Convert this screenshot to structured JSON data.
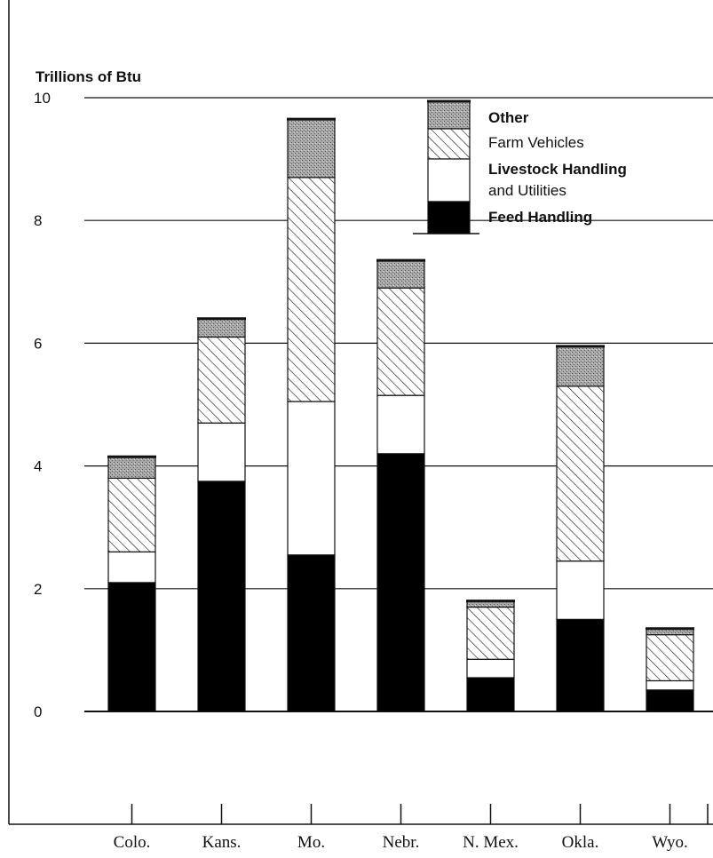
{
  "chart_data": {
    "type": "bar",
    "stacked": true,
    "ylabel": "Trillions of Btu",
    "ylim": [
      0,
      10
    ],
    "yticks": [
      0,
      2,
      4,
      6,
      8,
      10
    ],
    "grid": true,
    "legend_position": "top-right",
    "categories": [
      "Colo.",
      "Kans.",
      "Mo.",
      "Nebr.",
      "N. Mex.",
      "Okla.",
      "Wyo."
    ],
    "series": [
      {
        "name": "Feed Handling",
        "pattern": "solid-black",
        "color": "#000000",
        "values": [
          2.1,
          3.75,
          2.55,
          4.2,
          0.55,
          1.5,
          0.35
        ]
      },
      {
        "name": "Livestock Handling and Utilities",
        "pattern": "white",
        "color": "#ffffff",
        "values": [
          0.5,
          0.95,
          2.5,
          0.95,
          0.3,
          0.95,
          0.15
        ]
      },
      {
        "name": "Farm Vehicles",
        "pattern": "diagonal-hatch",
        "color": "#000000",
        "values": [
          1.2,
          1.4,
          3.65,
          1.75,
          0.85,
          2.85,
          0.75
        ]
      },
      {
        "name": "Other",
        "pattern": "stipple-gray",
        "color": "#9a9a9a",
        "values": [
          0.35,
          0.3,
          0.95,
          0.45,
          0.1,
          0.65,
          0.1
        ]
      }
    ],
    "legend": [
      {
        "label": "Other",
        "label_line2": "",
        "bold": true,
        "series": "Other"
      },
      {
        "label": "Farm Vehicles",
        "label_line2": "",
        "bold": false,
        "series": "Farm Vehicles"
      },
      {
        "label": "Livestock Handling",
        "label_line2": "and Utilities",
        "bold": true,
        "series": "Livestock Handling and Utilities"
      },
      {
        "label": "Feed Handling",
        "label_line2": "",
        "bold": true,
        "series": "Feed Handling"
      }
    ]
  }
}
